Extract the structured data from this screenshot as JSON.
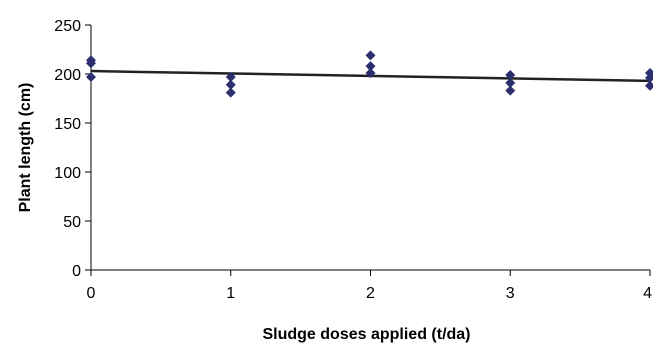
{
  "chart_data": {
    "type": "scatter",
    "title": "",
    "xlabel": "Sludge doses applied (t/da)",
    "ylabel": "Plant length (cm)",
    "xlim": [
      0,
      4
    ],
    "ylim": [
      0,
      250
    ],
    "x_ticks": [
      0,
      1,
      2,
      3,
      4
    ],
    "y_ticks": [
      0,
      50,
      100,
      150,
      200,
      250
    ],
    "grid": false,
    "legend": "none",
    "marker": "diamond",
    "colors": {
      "points": "#2b2f6e",
      "trendline": "#222222",
      "axis": "#000000"
    },
    "series": [
      {
        "points": [
          {
            "x": 0,
            "y": 214
          },
          {
            "x": 0,
            "y": 211
          },
          {
            "x": 0,
            "y": 197
          },
          {
            "x": 1,
            "y": 197
          },
          {
            "x": 1,
            "y": 189
          },
          {
            "x": 1,
            "y": 181
          },
          {
            "x": 2,
            "y": 219
          },
          {
            "x": 2,
            "y": 208
          },
          {
            "x": 2,
            "y": 201
          },
          {
            "x": 3,
            "y": 199
          },
          {
            "x": 3,
            "y": 191
          },
          {
            "x": 3,
            "y": 183
          },
          {
            "x": 4,
            "y": 201
          },
          {
            "x": 4,
            "y": 196
          },
          {
            "x": 4,
            "y": 188
          }
        ]
      }
    ],
    "trendline": {
      "type": "linear",
      "from": {
        "x": 0,
        "y": 203
      },
      "to": {
        "x": 4,
        "y": 193
      }
    }
  }
}
